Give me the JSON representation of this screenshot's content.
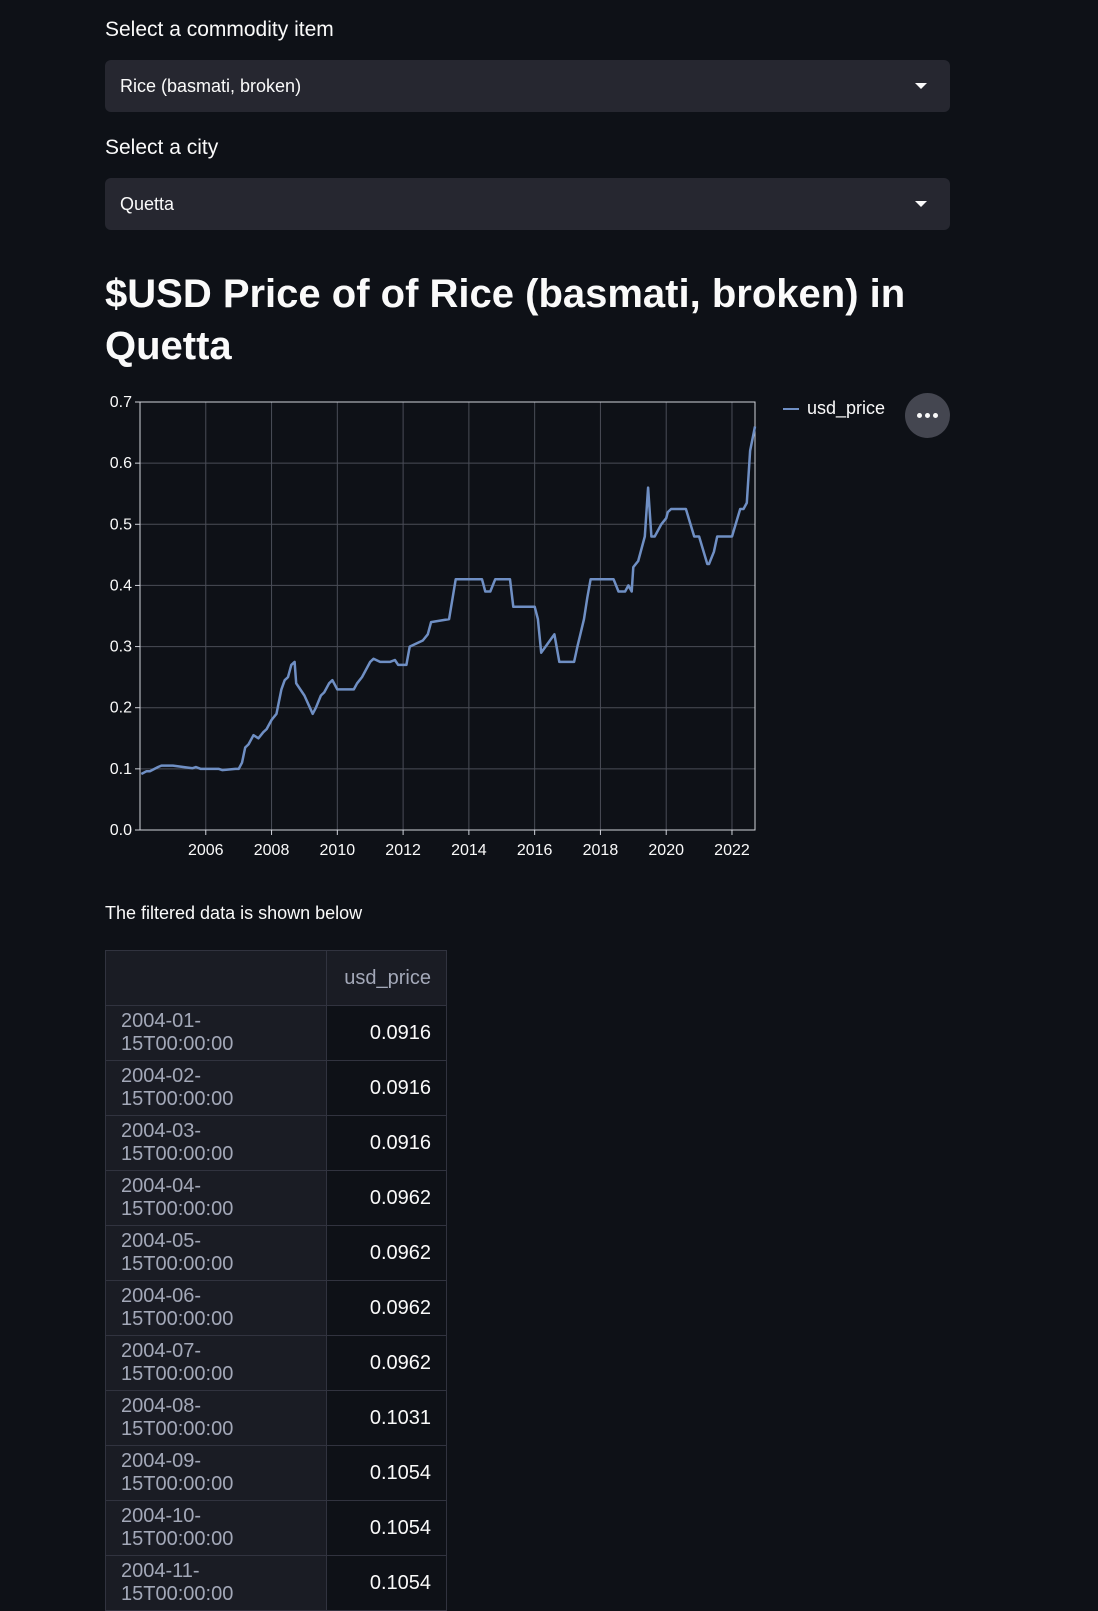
{
  "commodity_select": {
    "label": "Select a commodity item",
    "value": "Rice (basmati, broken)"
  },
  "city_select": {
    "label": "Select a city",
    "value": "Quetta"
  },
  "title": "$USD Price of of Rice (basmati, broken) in Quetta",
  "legend": {
    "label": "usd_price",
    "color": "#6f8fc4"
  },
  "caption": "The filtered data is shown below",
  "table": {
    "columns": [
      "",
      "usd_price"
    ],
    "rows": [
      [
        "2004-01-15T00:00:00",
        "0.0916"
      ],
      [
        "2004-02-15T00:00:00",
        "0.0916"
      ],
      [
        "2004-03-15T00:00:00",
        "0.0916"
      ],
      [
        "2004-04-15T00:00:00",
        "0.0962"
      ],
      [
        "2004-05-15T00:00:00",
        "0.0962"
      ],
      [
        "2004-06-15T00:00:00",
        "0.0962"
      ],
      [
        "2004-07-15T00:00:00",
        "0.0962"
      ],
      [
        "2004-08-15T00:00:00",
        "0.1031"
      ],
      [
        "2004-09-15T00:00:00",
        "0.1054"
      ],
      [
        "2004-10-15T00:00:00",
        "0.1054"
      ],
      [
        "2004-11-15T00:00:00",
        "0.1054"
      ]
    ]
  },
  "chart_data": {
    "type": "line",
    "ylim": [
      0,
      0.7
    ],
    "xlim": [
      2004.0,
      2022.7
    ],
    "y_ticks": [
      "0.0",
      "0.1",
      "0.2",
      "0.3",
      "0.4",
      "0.5",
      "0.6",
      "0.7"
    ],
    "x_ticks": [
      "2006",
      "2008",
      "2010",
      "2012",
      "2014",
      "2016",
      "2018",
      "2020",
      "2022"
    ],
    "grid": true,
    "legend_position": "right",
    "series": [
      {
        "name": "usd_price",
        "color": "#6f8fc4",
        "x": [
          2004.04,
          2004.2,
          2004.3,
          2004.55,
          2004.65,
          2005.0,
          2005.6,
          2005.7,
          2005.85,
          2006.0,
          2006.4,
          2006.5,
          2006.9,
          2007.0,
          2007.1,
          2007.2,
          2007.3,
          2007.45,
          2007.6,
          2007.75,
          2007.85,
          2008.0,
          2008.15,
          2008.3,
          2008.4,
          2008.5,
          2008.6,
          2008.7,
          2008.75,
          2009.0,
          2009.25,
          2009.35,
          2009.5,
          2009.6,
          2009.75,
          2009.85,
          2010.0,
          2010.1,
          2010.5,
          2010.6,
          2010.75,
          2011.0,
          2011.1,
          2011.3,
          2011.6,
          2011.75,
          2011.85,
          2012.1,
          2012.2,
          2012.6,
          2012.75,
          2012.85,
          2013.4,
          2013.6,
          2014.4,
          2014.5,
          2014.65,
          2014.8,
          2015.25,
          2015.35,
          2016.0,
          2016.1,
          2016.2,
          2016.4,
          2016.6,
          2016.75,
          2017.2,
          2017.3,
          2017.5,
          2017.6,
          2017.7,
          2018.4,
          2018.55,
          2018.75,
          2018.85,
          2018.95,
          2019.0,
          2019.15,
          2019.35,
          2019.45,
          2019.55,
          2019.65,
          2019.85,
          2020.0,
          2020.05,
          2020.15,
          2020.6,
          2020.85,
          2021.0,
          2021.25,
          2021.3,
          2021.45,
          2021.55,
          2022.0,
          2022.25,
          2022.35,
          2022.45,
          2022.55,
          2022.7
        ],
        "y": [
          0.0916,
          0.0962,
          0.0962,
          0.1031,
          0.1054,
          0.1054,
          0.101,
          0.103,
          0.1,
          0.1,
          0.1,
          0.098,
          0.1,
          0.1,
          0.11,
          0.135,
          0.14,
          0.155,
          0.15,
          0.16,
          0.165,
          0.18,
          0.19,
          0.23,
          0.245,
          0.25,
          0.27,
          0.275,
          0.24,
          0.22,
          0.19,
          0.2,
          0.22,
          0.225,
          0.24,
          0.245,
          0.23,
          0.23,
          0.23,
          0.24,
          0.25,
          0.275,
          0.28,
          0.275,
          0.275,
          0.278,
          0.27,
          0.27,
          0.3,
          0.31,
          0.32,
          0.34,
          0.345,
          0.41,
          0.41,
          0.39,
          0.39,
          0.41,
          0.41,
          0.365,
          0.365,
          0.345,
          0.29,
          0.305,
          0.32,
          0.275,
          0.275,
          0.3,
          0.345,
          0.38,
          0.41,
          0.41,
          0.39,
          0.39,
          0.4,
          0.39,
          0.43,
          0.44,
          0.48,
          0.56,
          0.48,
          0.48,
          0.5,
          0.51,
          0.52,
          0.525,
          0.525,
          0.48,
          0.48,
          0.435,
          0.435,
          0.455,
          0.48,
          0.48,
          0.525,
          0.525,
          0.535,
          0.62,
          0.66
        ]
      }
    ]
  }
}
